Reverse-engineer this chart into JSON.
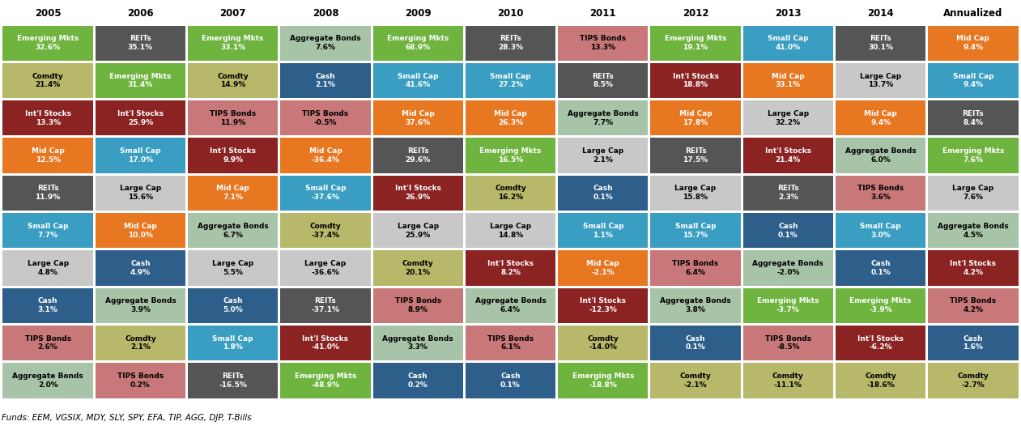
{
  "footnote": "Funds: EEM, VGSIX, MDY, SLY, SPY, EFA, TIP, AGG, DJP, T-Bills",
  "years": [
    "2005",
    "2006",
    "2007",
    "2008",
    "2009",
    "2010",
    "2011",
    "2012",
    "2013",
    "2014",
    "Annualized"
  ],
  "asset_colors": {
    "Emerging Mkts": "#6eb43f",
    "Comdty": "#b8b86a",
    "Int'l Stocks": "#8b2323",
    "Mid Cap": "#e87722",
    "REITs": "#555555",
    "Small Cap": "#3a9ec2",
    "Large Cap": "#c8c8c8",
    "Cash": "#2e5f8a",
    "TIPS Bonds": "#c87878",
    "Aggregate Bonds": "#a8c4a8"
  },
  "text_colors": {
    "Emerging Mkts": "white",
    "Comdty": "black",
    "Int'l Stocks": "white",
    "Mid Cap": "white",
    "REITs": "white",
    "Small Cap": "white",
    "Large Cap": "black",
    "Cash": "white",
    "TIPS Bonds": "black",
    "Aggregate Bonds": "black"
  },
  "columns": [
    [
      {
        "asset": "Emerging Mkts",
        "value": "32.6%"
      },
      {
        "asset": "Comdty",
        "value": "21.4%"
      },
      {
        "asset": "Int'l Stocks",
        "value": "13.3%"
      },
      {
        "asset": "Mid Cap",
        "value": "12.5%"
      },
      {
        "asset": "REITs",
        "value": "11.9%"
      },
      {
        "asset": "Small Cap",
        "value": "7.7%"
      },
      {
        "asset": "Large Cap",
        "value": "4.8%"
      },
      {
        "asset": "Cash",
        "value": "3.1%"
      },
      {
        "asset": "TIPS Bonds",
        "value": "2.6%"
      },
      {
        "asset": "Aggregate Bonds",
        "value": "2.0%"
      }
    ],
    [
      {
        "asset": "REITs",
        "value": "35.1%"
      },
      {
        "asset": "Emerging Mkts",
        "value": "31.4%"
      },
      {
        "asset": "Int'l Stocks",
        "value": "25.9%"
      },
      {
        "asset": "Small Cap",
        "value": "17.0%"
      },
      {
        "asset": "Large Cap",
        "value": "15.6%"
      },
      {
        "asset": "Mid Cap",
        "value": "10.0%"
      },
      {
        "asset": "Cash",
        "value": "4.9%"
      },
      {
        "asset": "Aggregate Bonds",
        "value": "3.9%"
      },
      {
        "asset": "Comdty",
        "value": "2.1%"
      },
      {
        "asset": "TIPS Bonds",
        "value": "0.2%"
      }
    ],
    [
      {
        "asset": "Emerging Mkts",
        "value": "33.1%"
      },
      {
        "asset": "Comdty",
        "value": "14.9%"
      },
      {
        "asset": "TIPS Bonds",
        "value": "11.9%"
      },
      {
        "asset": "Int'l Stocks",
        "value": "9.9%"
      },
      {
        "asset": "Mid Cap",
        "value": "7.1%"
      },
      {
        "asset": "Aggregate Bonds",
        "value": "6.7%"
      },
      {
        "asset": "Large Cap",
        "value": "5.5%"
      },
      {
        "asset": "Cash",
        "value": "5.0%"
      },
      {
        "asset": "Small Cap",
        "value": "1.8%"
      },
      {
        "asset": "REITs",
        "value": "-16.5%"
      }
    ],
    [
      {
        "asset": "Aggregate Bonds",
        "value": "7.6%"
      },
      {
        "asset": "Cash",
        "value": "2.1%"
      },
      {
        "asset": "TIPS Bonds",
        "value": "-0.5%"
      },
      {
        "asset": "Mid Cap",
        "value": "-36.4%"
      },
      {
        "asset": "Small Cap",
        "value": "-37.6%"
      },
      {
        "asset": "Comdty",
        "value": "-37.4%"
      },
      {
        "asset": "Large Cap",
        "value": "-36.6%"
      },
      {
        "asset": "REITs",
        "value": "-37.1%"
      },
      {
        "asset": "Int'l Stocks",
        "value": "-41.0%"
      },
      {
        "asset": "Emerging Mkts",
        "value": "-48.9%"
      }
    ],
    [
      {
        "asset": "Emerging Mkts",
        "value": "68.9%"
      },
      {
        "asset": "Small Cap",
        "value": "41.6%"
      },
      {
        "asset": "Mid Cap",
        "value": "37.6%"
      },
      {
        "asset": "REITs",
        "value": "29.6%"
      },
      {
        "asset": "Int'l Stocks",
        "value": "26.9%"
      },
      {
        "asset": "Large Cap",
        "value": "25.9%"
      },
      {
        "asset": "Comdty",
        "value": "20.1%"
      },
      {
        "asset": "TIPS Bonds",
        "value": "8.9%"
      },
      {
        "asset": "Aggregate Bonds",
        "value": "3.3%"
      },
      {
        "asset": "Cash",
        "value": "0.2%"
      }
    ],
    [
      {
        "asset": "REITs",
        "value": "28.3%"
      },
      {
        "asset": "Small Cap",
        "value": "27.2%"
      },
      {
        "asset": "Mid Cap",
        "value": "26.3%"
      },
      {
        "asset": "Emerging Mkts",
        "value": "16.5%"
      },
      {
        "asset": "Comdty",
        "value": "16.2%"
      },
      {
        "asset": "Large Cap",
        "value": "14.8%"
      },
      {
        "asset": "Int'l Stocks",
        "value": "8.2%"
      },
      {
        "asset": "Aggregate Bonds",
        "value": "6.4%"
      },
      {
        "asset": "TIPS Bonds",
        "value": "6.1%"
      },
      {
        "asset": "Cash",
        "value": "0.1%"
      }
    ],
    [
      {
        "asset": "TIPS Bonds",
        "value": "13.3%"
      },
      {
        "asset": "REITs",
        "value": "8.5%"
      },
      {
        "asset": "Aggregate Bonds",
        "value": "7.7%"
      },
      {
        "asset": "Large Cap",
        "value": "2.1%"
      },
      {
        "asset": "Cash",
        "value": "0.1%"
      },
      {
        "asset": "Small Cap",
        "value": "1.1%"
      },
      {
        "asset": "Mid Cap",
        "value": "-2.1%"
      },
      {
        "asset": "Int'l Stocks",
        "value": "-12.3%"
      },
      {
        "asset": "Comdty",
        "value": "-14.0%"
      },
      {
        "asset": "Emerging Mkts",
        "value": "-18.8%"
      }
    ],
    [
      {
        "asset": "Emerging Mkts",
        "value": "19.1%"
      },
      {
        "asset": "Int'l Stocks",
        "value": "18.8%"
      },
      {
        "asset": "Mid Cap",
        "value": "17.8%"
      },
      {
        "asset": "REITs",
        "value": "17.5%"
      },
      {
        "asset": "Large Cap",
        "value": "15.8%"
      },
      {
        "asset": "Small Cap",
        "value": "15.7%"
      },
      {
        "asset": "TIPS Bonds",
        "value": "6.4%"
      },
      {
        "asset": "Aggregate Bonds",
        "value": "3.8%"
      },
      {
        "asset": "Cash",
        "value": "0.1%"
      },
      {
        "asset": "Comdty",
        "value": "-2.1%"
      }
    ],
    [
      {
        "asset": "Small Cap",
        "value": "41.0%"
      },
      {
        "asset": "Mid Cap",
        "value": "33.1%"
      },
      {
        "asset": "Large Cap",
        "value": "32.2%"
      },
      {
        "asset": "Int'l Stocks",
        "value": "21.4%"
      },
      {
        "asset": "REITs",
        "value": "2.3%"
      },
      {
        "asset": "Cash",
        "value": "0.1%"
      },
      {
        "asset": "Aggregate Bonds",
        "value": "-2.0%"
      },
      {
        "asset": "Emerging Mkts",
        "value": "-3.7%"
      },
      {
        "asset": "TIPS Bonds",
        "value": "-8.5%"
      },
      {
        "asset": "Comdty",
        "value": "-11.1%"
      }
    ],
    [
      {
        "asset": "REITs",
        "value": "30.1%"
      },
      {
        "asset": "Large Cap",
        "value": "13.7%"
      },
      {
        "asset": "Mid Cap",
        "value": "9.4%"
      },
      {
        "asset": "Aggregate Bonds",
        "value": "6.0%"
      },
      {
        "asset": "TIPS Bonds",
        "value": "3.6%"
      },
      {
        "asset": "Small Cap",
        "value": "3.0%"
      },
      {
        "asset": "Cash",
        "value": "0.1%"
      },
      {
        "asset": "Emerging Mkts",
        "value": "-3.9%"
      },
      {
        "asset": "Int'l Stocks",
        "value": "-6.2%"
      },
      {
        "asset": "Comdty",
        "value": "-18.6%"
      }
    ],
    [
      {
        "asset": "Mid Cap",
        "value": "9.4%"
      },
      {
        "asset": "Small Cap",
        "value": "9.4%"
      },
      {
        "asset": "REITs",
        "value": "8.4%"
      },
      {
        "asset": "Emerging Mkts",
        "value": "7.6%"
      },
      {
        "asset": "Large Cap",
        "value": "7.6%"
      },
      {
        "asset": "Aggregate Bonds",
        "value": "4.5%"
      },
      {
        "asset": "Int'l Stocks",
        "value": "4.2%"
      },
      {
        "asset": "TIPS Bonds",
        "value": "4.2%"
      },
      {
        "asset": "Cash",
        "value": "1.6%"
      },
      {
        "asset": "Comdty",
        "value": "-2.7%"
      }
    ]
  ]
}
